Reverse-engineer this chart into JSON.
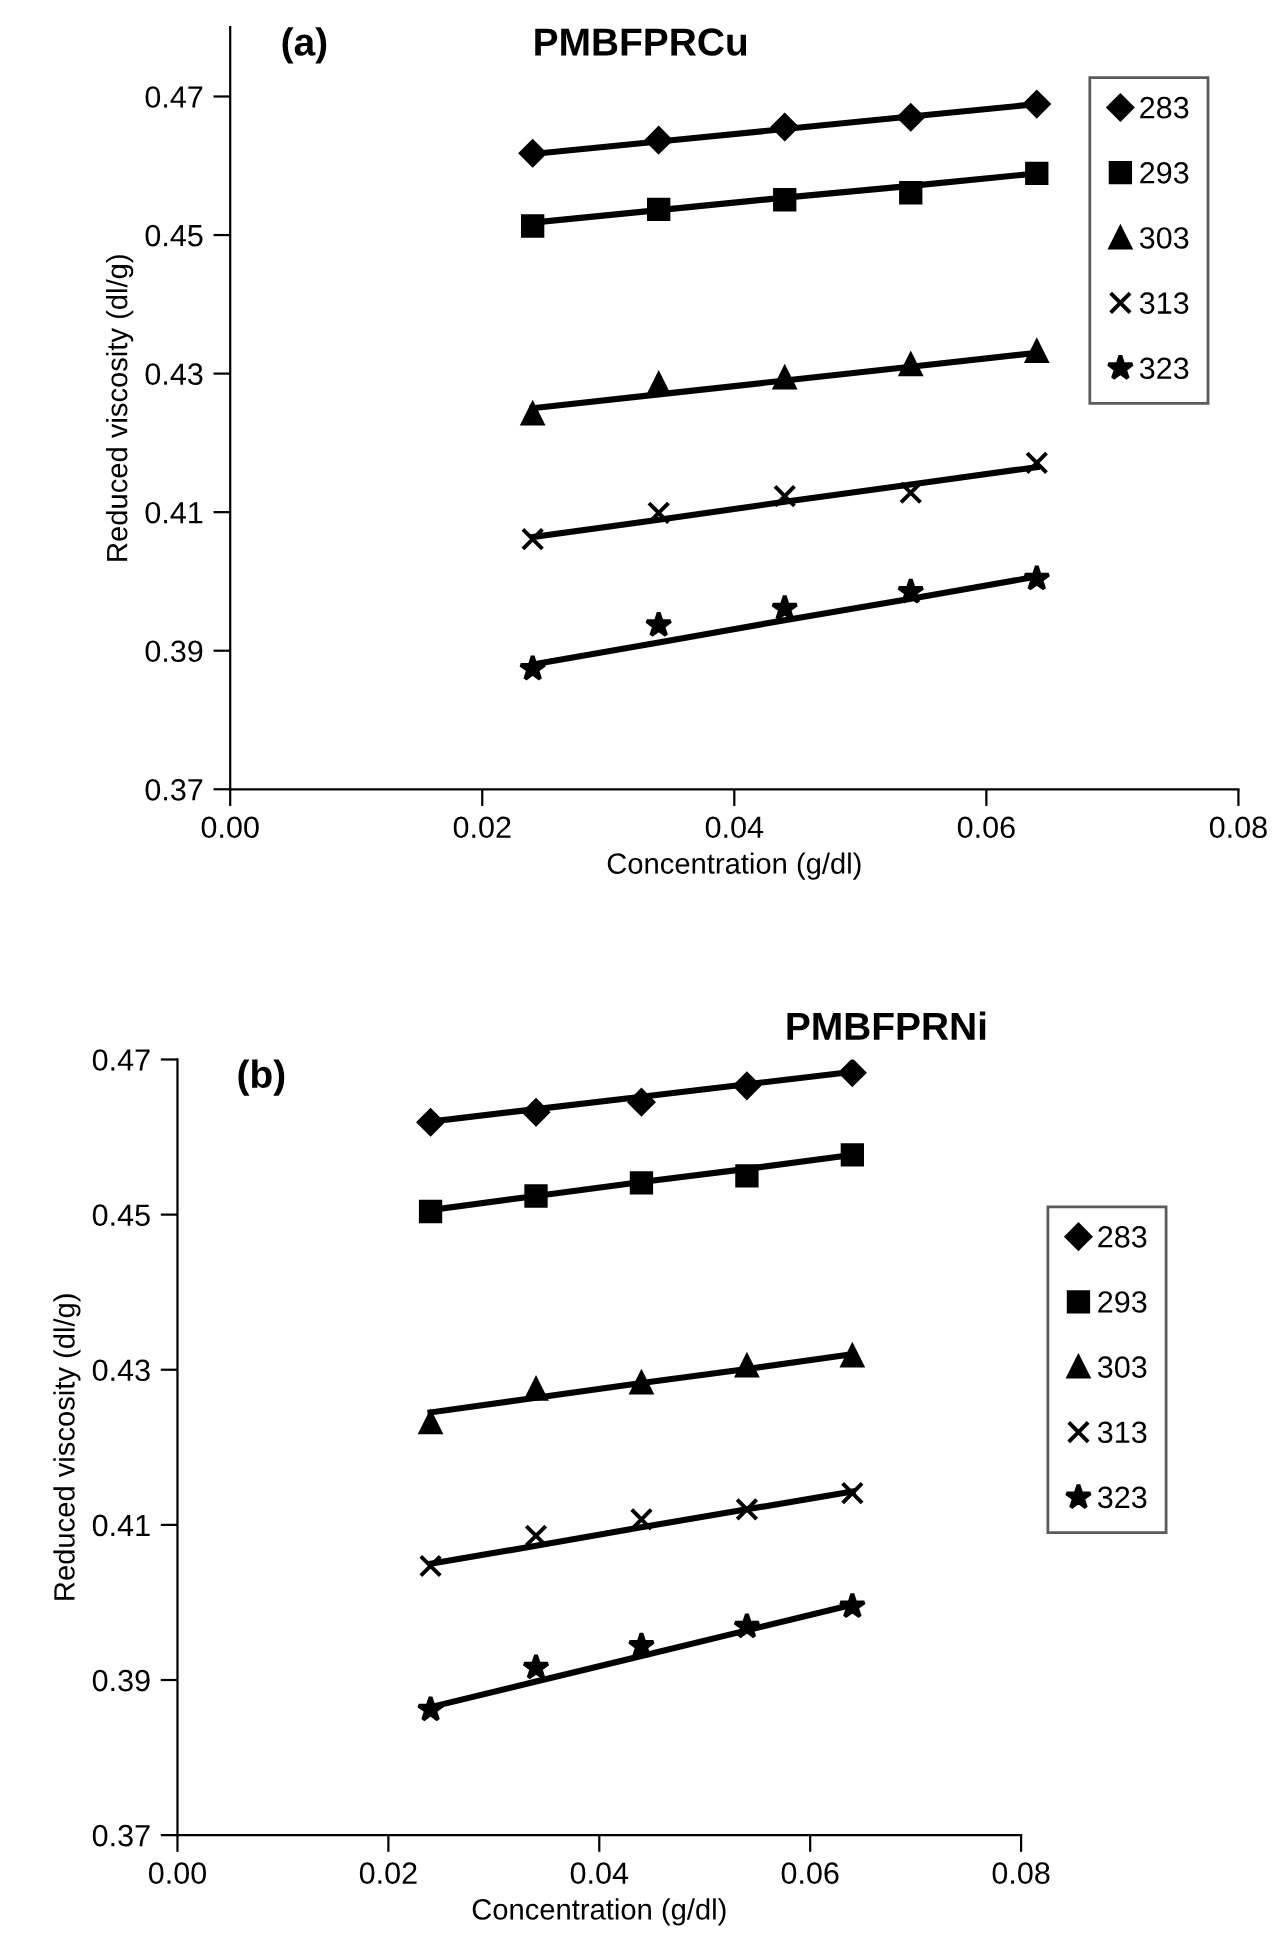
{
  "chart_data": [
    {
      "type": "scatter",
      "title": "PMBFPRCu",
      "annotations": [
        "(a)"
      ],
      "xlabel": "Concentration (g/dl)",
      "ylabel": "Reduced viscosity (dl/g)",
      "x": [
        0.024,
        0.034,
        0.044,
        0.054,
        0.064
      ],
      "xlim": [
        0.0,
        0.08
      ],
      "xticks": [
        {
          "value": 0.0,
          "label": "0.00"
        },
        {
          "value": 0.02,
          "label": "0.02"
        },
        {
          "value": 0.04,
          "label": "0.04"
        },
        {
          "value": 0.06,
          "label": "0.06"
        },
        {
          "value": 0.08,
          "label": "0.08"
        }
      ],
      "ylim": [
        0.37,
        0.48
      ],
      "yticks": [
        0.37,
        0.39,
        0.41,
        0.43,
        0.45,
        0.47
      ],
      "legend": "right",
      "series": [
        {
          "name": "283",
          "color": "#000000",
          "marker": "diamond",
          "values": [
            0.4618,
            0.4637,
            0.4656,
            0.467,
            0.4689
          ]
        },
        {
          "name": "293",
          "color": "#000000",
          "marker": "square",
          "values": [
            0.4513,
            0.4537,
            0.4551,
            0.4561,
            0.4589
          ]
        },
        {
          "name": "303",
          "color": "#000000",
          "marker": "triangle",
          "values": [
            0.4242,
            0.4285,
            0.4294,
            0.4313,
            0.4332
          ]
        },
        {
          "name": "313",
          "color": "#000000",
          "marker": "cross",
          "values": [
            0.4061,
            0.4099,
            0.4123,
            0.4128,
            0.4171
          ]
        },
        {
          "name": "323",
          "color": "#000000",
          "marker": "star",
          "values": [
            0.3874,
            0.3937,
            0.3961,
            0.3985,
            0.4004
          ]
        },
        {
          "type": "line",
          "color": "#000000",
          "values": [
            0.4617,
            0.4635,
            0.4653,
            0.4671,
            0.4689
          ]
        },
        {
          "type": "line",
          "color": "#000000",
          "values": [
            0.4518,
            0.4536,
            0.4554,
            0.4571,
            0.4589
          ]
        },
        {
          "type": "line",
          "color": "#000000",
          "values": [
            0.425,
            0.427,
            0.429,
            0.431,
            0.433
          ]
        },
        {
          "type": "line",
          "color": "#000000",
          "values": [
            0.4064,
            0.4089,
            0.4115,
            0.414,
            0.4165
          ]
        },
        {
          "type": "line",
          "color": "#000000",
          "values": [
            0.388,
            0.3912,
            0.3944,
            0.3975,
            0.4007
          ]
        }
      ]
    },
    {
      "type": "scatter",
      "title": "PMBFPRNi",
      "annotations": [
        "(b)"
      ],
      "xlabel": "Concentration (g/dl)",
      "ylabel": "Reduced viscosity (dl/g)",
      "x": [
        0.024,
        0.034,
        0.044,
        0.054,
        0.064
      ],
      "xlim": [
        0.0,
        0.08
      ],
      "xticks": [
        {
          "value": 0.0,
          "label": "0.00"
        },
        {
          "value": 0.02,
          "label": "0.02"
        },
        {
          "value": 0.04,
          "label": "0.04"
        },
        {
          "value": 0.06,
          "label": "0.06"
        },
        {
          "value": 0.08,
          "label": "0.08"
        }
      ],
      "ylim": [
        0.37,
        0.47
      ],
      "yticks": [
        0.37,
        0.39,
        0.41,
        0.43,
        0.45,
        0.47
      ],
      "legend": "right",
      "series": [
        {
          "name": "283",
          "color": "#000000",
          "marker": "diamond",
          "values": [
            0.4619,
            0.4632,
            0.4645,
            0.4666,
            0.4683
          ]
        },
        {
          "name": "293",
          "color": "#000000",
          "marker": "square",
          "values": [
            0.4504,
            0.4524,
            0.4541,
            0.455,
            0.4577
          ]
        },
        {
          "name": "303",
          "color": "#000000",
          "marker": "triangle",
          "values": [
            0.4232,
            0.4275,
            0.4283,
            0.4305,
            0.4318
          ]
        },
        {
          "name": "313",
          "color": "#000000",
          "marker": "cross",
          "values": [
            0.4047,
            0.4086,
            0.4107,
            0.412,
            0.4141
          ]
        },
        {
          "name": "323",
          "color": "#000000",
          "marker": "star",
          "values": [
            0.3862,
            0.3916,
            0.3944,
            0.3969,
            0.3995
          ]
        },
        {
          "type": "line",
          "color": "#000000",
          "values": [
            0.462,
            0.4636,
            0.4652,
            0.4668,
            0.4684
          ]
        },
        {
          "type": "line",
          "color": "#000000",
          "values": [
            0.4506,
            0.4524,
            0.4542,
            0.4559,
            0.4577
          ]
        },
        {
          "type": "line",
          "color": "#000000",
          "values": [
            0.4245,
            0.4264,
            0.4283,
            0.4301,
            0.432
          ]
        },
        {
          "type": "line",
          "color": "#000000",
          "values": [
            0.405,
            0.4073,
            0.4097,
            0.412,
            0.4143
          ]
        },
        {
          "type": "line",
          "color": "#000000",
          "values": [
            0.3865,
            0.3898,
            0.3931,
            0.3964,
            0.3997
          ]
        }
      ]
    }
  ]
}
